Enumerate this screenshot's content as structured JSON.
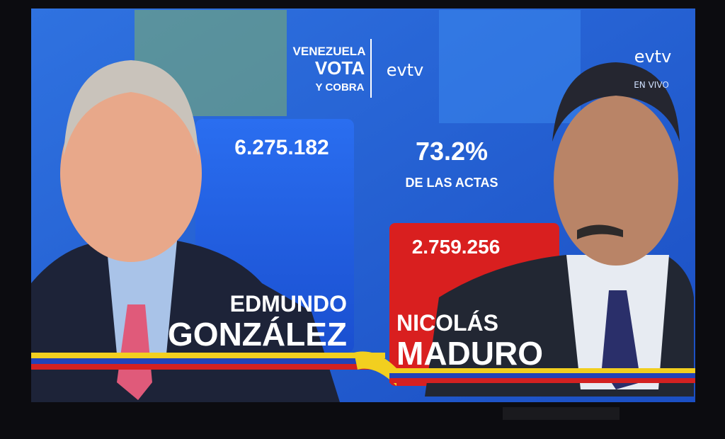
{
  "logo": {
    "line1": "VENEZUELA",
    "line2": "VOTA",
    "line3": "Y COBRA",
    "channel": "evtv"
  },
  "corner": {
    "channel": "evtv",
    "status": "EN VIVO"
  },
  "summary": {
    "percentage": "73.2%",
    "caption": "DE LAS ACTAS"
  },
  "candidates": [
    {
      "first_name": "EDMUNDO",
      "last_name": "GONZÁLEZ",
      "votes": "6.275.182"
    },
    {
      "first_name": "NICOLÁS",
      "last_name": "MADURO",
      "votes": "2.759.256"
    }
  ]
}
